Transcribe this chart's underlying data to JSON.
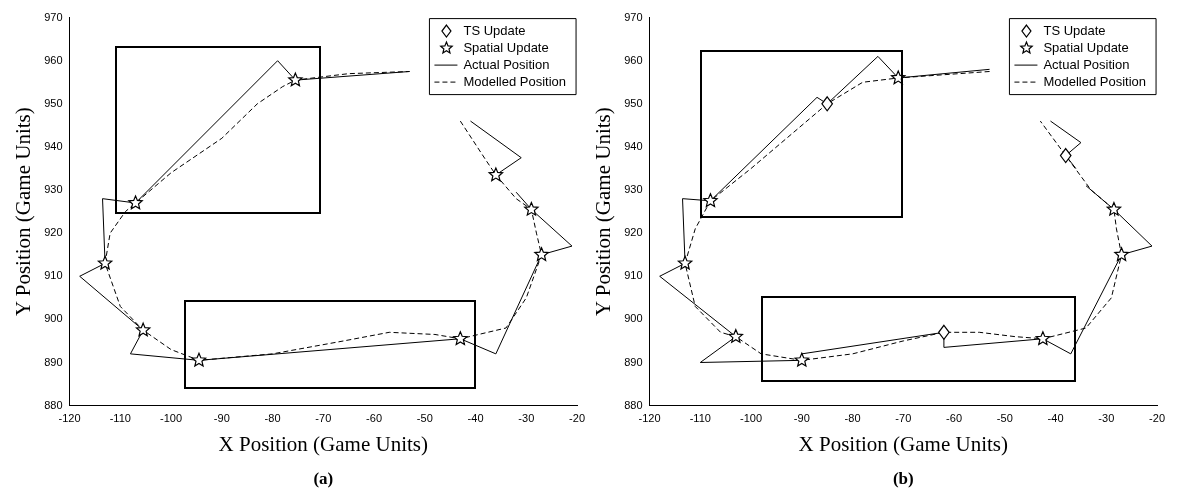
{
  "chart_data": [
    {
      "type": "line",
      "xlabel": "X Position (Game Units)",
      "ylabel": "Y Position (Game Units)",
      "annotations": [
        "(a)"
      ],
      "xlim": [
        -120,
        -20
      ],
      "xticks": [
        -120,
        -110,
        -100,
        -90,
        -80,
        -70,
        -60,
        -50,
        -40,
        -30,
        -20
      ],
      "ylim": [
        880,
        970
      ],
      "yticks": [
        880,
        890,
        900,
        910,
        920,
        930,
        940,
        950,
        960,
        970
      ],
      "grid": false,
      "legend": "top right",
      "series": [
        {
          "name": "TS Update",
          "type": "scatter",
          "marker": "diamond",
          "color": "#000000"
        },
        {
          "name": "Spatial Update",
          "type": "scatter",
          "marker": "star",
          "color": "#000000",
          "x": [
            -75.5,
            -36,
            -29,
            -27,
            -43,
            -94.5,
            -105.5,
            -113,
            -107
          ],
          "values": [
            955.5,
            933.5,
            925.5,
            915,
            895.5,
            890.5,
            897.5,
            913,
            927
          ]
        },
        {
          "name": "Actual Position",
          "type": "line",
          "line_style": "solid",
          "color": "#000000",
          "x": [
            -75.5,
            -53,
            -50,
            -41,
            -31,
            -36,
            -35,
            -33.5,
            -32,
            -29,
            -21,
            -27,
            -36,
            -43,
            -94.5,
            -108,
            -105.5,
            -118,
            -113,
            -113.5,
            -107,
            -79,
            -75.5
          ],
          "values": [
            955.5,
            957.5,
            null,
            946,
            937.5,
            933.5,
            932,
            null,
            929.5,
            925.5,
            917,
            915,
            892,
            895.5,
            890.5,
            892,
            897.5,
            910,
            913,
            928,
            927,
            960,
            955.5
          ]
        },
        {
          "name": "Modelled Position",
          "type": "line",
          "line_style": "dashed",
          "color": "#000000",
          "x": [
            -43,
            -38,
            -36,
            -32,
            -29,
            -28,
            -27,
            -30,
            -34,
            -43,
            -48,
            -57,
            -66,
            -80,
            -94.5,
            -100,
            -105.5,
            -110,
            -113,
            -112,
            -109,
            -107,
            -100,
            -90,
            -83,
            -78,
            -75.5,
            -65,
            -53
          ],
          "values": [
            946,
            937,
            933.5,
            928,
            925.5,
            920,
            915,
            905,
            898,
            895.5,
            896.5,
            897,
            895,
            892,
            890.5,
            893,
            897.5,
            903,
            913,
            920,
            925,
            927,
            934,
            942,
            950,
            954,
            955.5,
            957,
            957.5
          ]
        }
      ]
    },
    {
      "type": "line",
      "xlabel": "X Position (Game Units)",
      "ylabel": "Y Position (Game Units)",
      "annotations": [
        "(b)"
      ],
      "xlim": [
        -120,
        -20
      ],
      "xticks": [
        -120,
        -110,
        -100,
        -90,
        -80,
        -70,
        -60,
        -50,
        -40,
        -30,
        -20
      ],
      "ylim": [
        880,
        970
      ],
      "yticks": [
        880,
        890,
        900,
        910,
        920,
        930,
        940,
        950,
        960,
        970
      ],
      "grid": false,
      "legend": "top right",
      "series": [
        {
          "name": "TS Update",
          "type": "scatter",
          "marker": "diamond",
          "color": "#000000",
          "x": [
            -85,
            -38,
            -62
          ],
          "values": [
            950,
            938,
            897
          ]
        },
        {
          "name": "Spatial Update",
          "type": "scatter",
          "marker": "star",
          "color": "#000000",
          "x": [
            -71,
            -28.5,
            -27,
            -42.5,
            -90,
            -103,
            -113,
            -108
          ],
          "values": [
            956,
            925.5,
            915,
            895.5,
            890.5,
            896,
            913,
            927.5
          ]
        },
        {
          "name": "Actual Position",
          "type": "line",
          "line_style": "solid",
          "color": "#000000",
          "x": [
            -71,
            -53,
            -50,
            -41,
            -35,
            -38,
            -36,
            -35,
            -34,
            -28.5,
            -21,
            -27,
            -37,
            -42.5,
            -62,
            -62,
            -90,
            -90,
            -110,
            -103,
            -118,
            -113,
            -113.5,
            -108,
            -87,
            -85,
            -75,
            -71
          ],
          "values": [
            956,
            958,
            null,
            946,
            941,
            938,
            935,
            null,
            931,
            925.5,
            917,
            915,
            892,
            895.5,
            893.5,
            897,
            892,
            890.5,
            890,
            896,
            910,
            913,
            928,
            927.5,
            951.5,
            950,
            961,
            956
          ]
        },
        {
          "name": "Modelled Position",
          "type": "line",
          "line_style": "dashed",
          "color": "#000000",
          "x": [
            -53,
            -71,
            -78,
            -85,
            -93,
            -100,
            -108,
            -111,
            -113,
            -111,
            -106,
            -103,
            -98,
            -90,
            -80,
            -70,
            -62,
            -55,
            -48,
            -42.5,
            -34,
            -29,
            -27,
            -28,
            -28.5,
            -33,
            -38,
            -43
          ],
          "values": [
            957.5,
            956,
            955,
            950,
            942,
            935,
            927.5,
            921,
            913,
            903,
            897,
            896,
            892,
            890.5,
            892,
            895,
            897,
            897,
            896,
            895.5,
            898,
            905,
            915,
            921,
            925.5,
            930,
            938,
            946
          ]
        }
      ]
    }
  ]
}
